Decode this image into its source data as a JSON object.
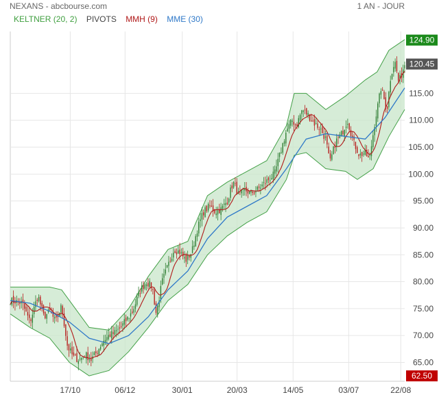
{
  "header": {
    "title": "NEXANS - abcbourse.com",
    "period": "1 AN - JOUR"
  },
  "legend": [
    {
      "label": "KELTNER (20, 2)",
      "color": "#3f9f3f"
    },
    {
      "label": "PIVOTS",
      "color": "#444444"
    },
    {
      "label": "MMH (9)",
      "color": "#b01818"
    },
    {
      "label": "MME (30)",
      "color": "#2e78c8"
    }
  ],
  "colors": {
    "up": "#2e7d32",
    "down": "#b71c1c",
    "band_fill": "#c8e6c9",
    "band_line": "#43a047",
    "mme": "#2e78c8",
    "mmh": "#b01818",
    "grid": "#e6e6e6",
    "tag_high": "#1b8a1b",
    "tag_last": "#555555",
    "tag_low": "#c00000"
  },
  "chart_data": {
    "type": "candlestick",
    "ylim": [
      61.5,
      126.5
    ],
    "yticks": [
      "65.00",
      "70.00",
      "75.00",
      "80.00",
      "85.00",
      "90.00",
      "95.00",
      "100.00",
      "105.00",
      "110.00",
      "115.00"
    ],
    "xticks": [
      "17/10",
      "06/12",
      "30/01",
      "20/03",
      "14/05",
      "03/07",
      "22/08"
    ],
    "xtick_positions": [
      0.152,
      0.291,
      0.436,
      0.575,
      0.717,
      0.858,
      0.99
    ],
    "price_tags": {
      "high": "124.90",
      "last": "120.45",
      "low": "62.50"
    },
    "close_path": [
      [
        0.0,
        76.5
      ],
      [
        0.03,
        76.0
      ],
      [
        0.05,
        72.5
      ],
      [
        0.07,
        77.5
      ],
      [
        0.085,
        73.5
      ],
      [
        0.1,
        74.5
      ],
      [
        0.115,
        72.5
      ],
      [
        0.13,
        75.5
      ],
      [
        0.145,
        68.0
      ],
      [
        0.16,
        66.0
      ],
      [
        0.175,
        65.5
      ],
      [
        0.19,
        66.5
      ],
      [
        0.205,
        65.5
      ],
      [
        0.22,
        67.0
      ],
      [
        0.235,
        69.0
      ],
      [
        0.25,
        70.0
      ],
      [
        0.265,
        70.5
      ],
      [
        0.28,
        71.5
      ],
      [
        0.295,
        73.0
      ],
      [
        0.31,
        74.5
      ],
      [
        0.33,
        78.5
      ],
      [
        0.345,
        80.0
      ],
      [
        0.36,
        79.0
      ],
      [
        0.37,
        74.0
      ],
      [
        0.385,
        80.0
      ],
      [
        0.4,
        83.0
      ],
      [
        0.415,
        86.0
      ],
      [
        0.43,
        85.5
      ],
      [
        0.445,
        84.0
      ],
      [
        0.46,
        85.5
      ],
      [
        0.475,
        90.0
      ],
      [
        0.49,
        93.0
      ],
      [
        0.505,
        94.0
      ],
      [
        0.52,
        93.0
      ],
      [
        0.535,
        93.5
      ],
      [
        0.55,
        95.0
      ],
      [
        0.565,
        98.5
      ],
      [
        0.58,
        96.0
      ],
      [
        0.595,
        97.0
      ],
      [
        0.61,
        96.5
      ],
      [
        0.625,
        97.0
      ],
      [
        0.64,
        98.0
      ],
      [
        0.655,
        99.0
      ],
      [
        0.67,
        100.0
      ],
      [
        0.685,
        104.0
      ],
      [
        0.7,
        108.0
      ],
      [
        0.715,
        110.0
      ],
      [
        0.725,
        109.0
      ],
      [
        0.74,
        112.0
      ],
      [
        0.755,
        111.0
      ],
      [
        0.77,
        109.5
      ],
      [
        0.785,
        108.5
      ],
      [
        0.8,
        106.5
      ],
      [
        0.81,
        102.0
      ],
      [
        0.825,
        106.0
      ],
      [
        0.84,
        107.5
      ],
      [
        0.855,
        110.0
      ],
      [
        0.87,
        106.0
      ],
      [
        0.885,
        103.5
      ],
      [
        0.9,
        104.0
      ],
      [
        0.91,
        102.5
      ],
      [
        0.925,
        110.0
      ],
      [
        0.94,
        116.0
      ],
      [
        0.955,
        112.0
      ],
      [
        0.965,
        118.5
      ],
      [
        0.975,
        121.0
      ],
      [
        0.985,
        117.0
      ],
      [
        1.0,
        120.5
      ]
    ],
    "keltner_upper_path": [
      [
        0.0,
        79.0
      ],
      [
        0.05,
        79.0
      ],
      [
        0.1,
        79.0
      ],
      [
        0.13,
        78.5
      ],
      [
        0.16,
        75.5
      ],
      [
        0.2,
        71.5
      ],
      [
        0.25,
        71.0
      ],
      [
        0.3,
        75.0
      ],
      [
        0.35,
        81.0
      ],
      [
        0.4,
        86.0
      ],
      [
        0.45,
        87.5
      ],
      [
        0.5,
        96.0
      ],
      [
        0.55,
        98.5
      ],
      [
        0.6,
        100.5
      ],
      [
        0.65,
        102.5
      ],
      [
        0.7,
        109.0
      ],
      [
        0.72,
        115.0
      ],
      [
        0.75,
        115.0
      ],
      [
        0.8,
        112.0
      ],
      [
        0.85,
        114.5
      ],
      [
        0.9,
        117.5
      ],
      [
        0.93,
        119.0
      ],
      [
        0.96,
        123.0
      ],
      [
        1.0,
        125.0
      ]
    ],
    "keltner_lower_path": [
      [
        0.0,
        74.0
      ],
      [
        0.05,
        71.5
      ],
      [
        0.1,
        69.5
      ],
      [
        0.15,
        65.0
      ],
      [
        0.2,
        62.5
      ],
      [
        0.25,
        63.5
      ],
      [
        0.3,
        67.0
      ],
      [
        0.35,
        71.5
      ],
      [
        0.4,
        76.5
      ],
      [
        0.45,
        79.5
      ],
      [
        0.5,
        85.0
      ],
      [
        0.55,
        88.5
      ],
      [
        0.6,
        91.0
      ],
      [
        0.65,
        93.0
      ],
      [
        0.7,
        99.0
      ],
      [
        0.72,
        103.5
      ],
      [
        0.75,
        104.0
      ],
      [
        0.8,
        101.0
      ],
      [
        0.85,
        100.5
      ],
      [
        0.88,
        99.0
      ],
      [
        0.92,
        101.0
      ],
      [
        0.96,
        107.0
      ],
      [
        1.0,
        112.0
      ]
    ],
    "mme_path": [
      [
        0.0,
        76.5
      ],
      [
        0.05,
        76.0
      ],
      [
        0.1,
        74.5
      ],
      [
        0.15,
        72.5
      ],
      [
        0.2,
        69.5
      ],
      [
        0.25,
        68.5
      ],
      [
        0.3,
        70.0
      ],
      [
        0.35,
        73.5
      ],
      [
        0.4,
        78.5
      ],
      [
        0.45,
        82.0
      ],
      [
        0.5,
        88.0
      ],
      [
        0.55,
        92.0
      ],
      [
        0.6,
        94.0
      ],
      [
        0.65,
        96.0
      ],
      [
        0.7,
        101.0
      ],
      [
        0.75,
        106.5
      ],
      [
        0.8,
        107.5
      ],
      [
        0.85,
        107.0
      ],
      [
        0.9,
        106.5
      ],
      [
        0.95,
        110.5
      ],
      [
        1.0,
        116.0
      ]
    ]
  }
}
